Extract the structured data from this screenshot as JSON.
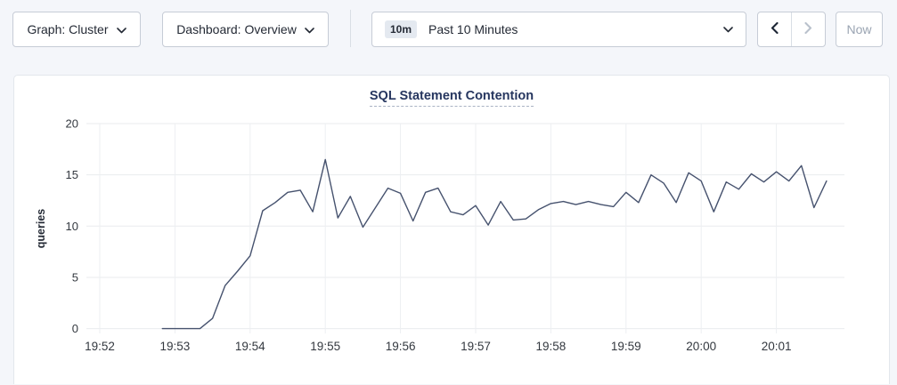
{
  "toolbar": {
    "graph_selector": {
      "label": "Graph: Cluster"
    },
    "dashboard_selector": {
      "label": "Dashboard: Overview"
    },
    "time_picker": {
      "badge": "10m",
      "label": "Past 10 Minutes"
    },
    "now_button": {
      "label": "Now"
    }
  },
  "colors": {
    "line": "#46526e",
    "title": "#26365f",
    "grid_h": "#e9ebee",
    "grid_v": "#edeff2",
    "tick_text": "#33383f",
    "prev_arrow": "#1c2534",
    "next_arrow_disabled": "#b9c1cc"
  },
  "chart_data": {
    "type": "line",
    "title": "SQL Statement Contention",
    "xlabel": "",
    "ylabel": "queries",
    "ylim": [
      0,
      20
    ],
    "yticks": [
      0,
      5,
      10,
      15,
      20
    ],
    "xticks": [
      "19:52",
      "19:53",
      "19:54",
      "19:55",
      "19:56",
      "19:57",
      "19:58",
      "19:59",
      "20:00",
      "20:01"
    ],
    "grid": true,
    "legend_position": "none",
    "series": [
      {
        "name": "queries",
        "color": "#46526e",
        "points": [
          [
            "19:52:50",
            0
          ],
          [
            "19:53:00",
            0
          ],
          [
            "19:53:10",
            0
          ],
          [
            "19:53:20",
            0
          ],
          [
            "19:53:30",
            1.0
          ],
          [
            "19:53:40",
            4.2
          ],
          [
            "19:53:50",
            5.6
          ],
          [
            "19:54:00",
            7.1
          ],
          [
            "19:54:10",
            11.5
          ],
          [
            "19:54:20",
            12.3
          ],
          [
            "19:54:30",
            13.3
          ],
          [
            "19:54:40",
            13.5
          ],
          [
            "19:54:50",
            11.4
          ],
          [
            "19:55:00",
            16.5
          ],
          [
            "19:55:10",
            10.8
          ],
          [
            "19:55:20",
            12.9
          ],
          [
            "19:55:30",
            9.9
          ],
          [
            "19:55:40",
            11.8
          ],
          [
            "19:55:50",
            13.7
          ],
          [
            "19:56:00",
            13.2
          ],
          [
            "19:56:10",
            10.5
          ],
          [
            "19:56:20",
            13.3
          ],
          [
            "19:56:30",
            13.7
          ],
          [
            "19:56:40",
            11.4
          ],
          [
            "19:56:50",
            11.1
          ],
          [
            "19:57:00",
            12.0
          ],
          [
            "19:57:10",
            10.1
          ],
          [
            "19:57:20",
            12.4
          ],
          [
            "19:57:30",
            10.6
          ],
          [
            "19:57:40",
            10.7
          ],
          [
            "19:57:50",
            11.6
          ],
          [
            "19:58:00",
            12.2
          ],
          [
            "19:58:10",
            12.4
          ],
          [
            "19:58:20",
            12.1
          ],
          [
            "19:58:30",
            12.4
          ],
          [
            "19:58:40",
            12.1
          ],
          [
            "19:58:50",
            11.9
          ],
          [
            "19:59:00",
            13.3
          ],
          [
            "19:59:10",
            12.3
          ],
          [
            "19:59:20",
            15.0
          ],
          [
            "19:59:30",
            14.2
          ],
          [
            "19:59:40",
            12.3
          ],
          [
            "19:59:50",
            15.2
          ],
          [
            "20:00:00",
            14.4
          ],
          [
            "20:00:10",
            11.4
          ],
          [
            "20:00:20",
            14.3
          ],
          [
            "20:00:30",
            13.6
          ],
          [
            "20:00:40",
            15.1
          ],
          [
            "20:00:50",
            14.3
          ],
          [
            "20:01:00",
            15.3
          ],
          [
            "20:01:10",
            14.4
          ],
          [
            "20:01:20",
            15.9
          ],
          [
            "20:01:30",
            11.8
          ],
          [
            "20:01:40",
            14.4
          ]
        ]
      }
    ]
  }
}
